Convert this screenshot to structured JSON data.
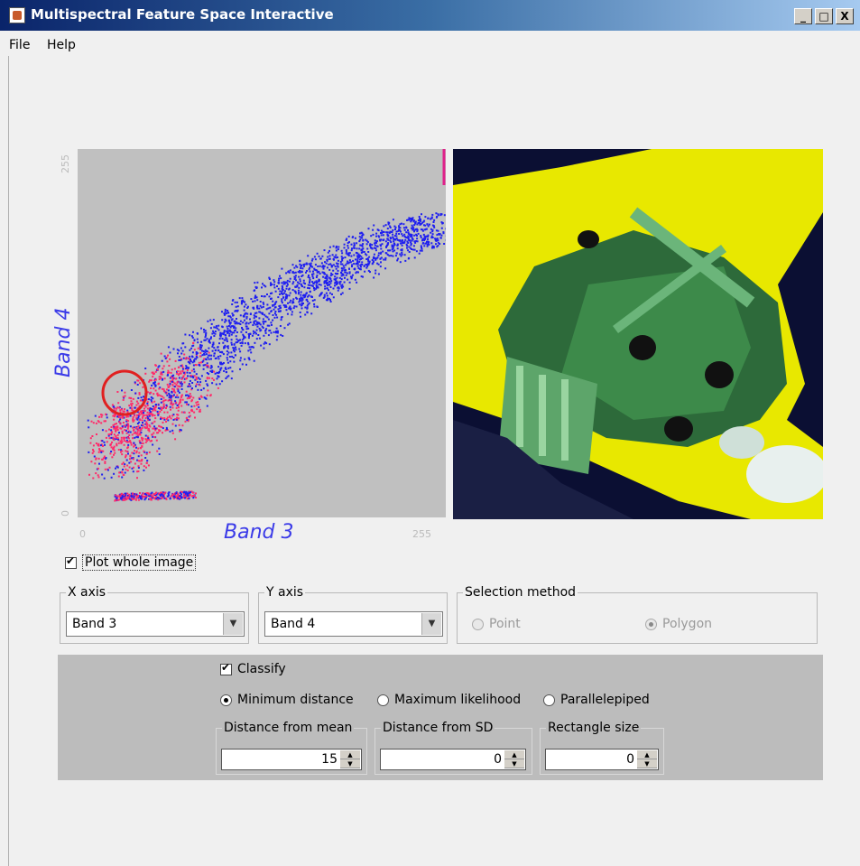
{
  "window": {
    "title": "Multispectral Feature Space Interactive",
    "controls": {
      "minimize": "_",
      "maximize": "□",
      "close": "X"
    }
  },
  "menu": [
    "File",
    "Help"
  ],
  "plot": {
    "x_label": "Band 3",
    "y_label": "Band 4",
    "x_ticks": [
      "0",
      "255"
    ],
    "y_ticks": [
      "0",
      "255"
    ],
    "point_color_low": "#1e1ef0",
    "point_color_high": "#ff2a6a",
    "selection_color": "#e02020"
  },
  "plot_whole_image": {
    "label": "Plot whole image",
    "checked": true
  },
  "x_axis": {
    "title": "X axis",
    "value": "Band 3"
  },
  "y_axis": {
    "title": "Y axis",
    "value": "Band 4"
  },
  "selection_method": {
    "title": "Selection method",
    "options": [
      {
        "label": "Point",
        "selected": false
      },
      {
        "label": "Polygon",
        "selected": true
      }
    ]
  },
  "classify": {
    "label": "Classify",
    "checked": true,
    "methods": [
      {
        "label": "Minimum distance",
        "selected": true
      },
      {
        "label": "Maximum likelihood",
        "selected": false
      },
      {
        "label": "Parallelepiped",
        "selected": false
      }
    ],
    "params": [
      {
        "title": "Distance from mean",
        "value": "15"
      },
      {
        "title": "Distance from SD",
        "value": "0"
      },
      {
        "title": "Rectangle size",
        "value": "0"
      }
    ]
  }
}
